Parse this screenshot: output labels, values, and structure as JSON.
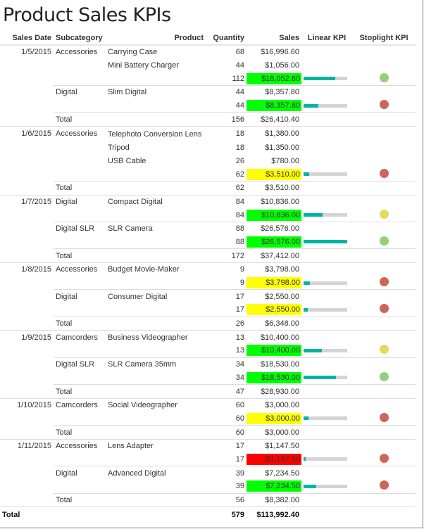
{
  "title": "Product Sales KPIs",
  "headers": [
    "Sales Date",
    "Subcategory",
    "Product",
    "Quantity",
    "Sales",
    "Linear KPI",
    "Stoplight KPI"
  ],
  "total_label": "Total",
  "colors": {
    "kpi_green": "#00ff00",
    "kpi_yellow": "#ffff00",
    "kpi_red": "#ff0000",
    "bar_fill": "#00b4a4",
    "bar_track": "#d4d4d4",
    "light_green": "#92d07a",
    "light_yellow": "#e6d85c",
    "light_red": "#cf645c"
  },
  "dates": [
    {
      "date": "1/5/2015",
      "total_qty": "156",
      "total_sales": "$26,410.40",
      "groups": [
        {
          "subcategory": "Accessories",
          "products": [
            {
              "name": "Carrying Case",
              "qty": "68",
              "sales": "$16,996.60"
            },
            {
              "name": "Mini Battery Charger",
              "qty": "44",
              "sales": "$1,056.00"
            }
          ],
          "qty": "112",
          "sales": "$18,052.60",
          "status": "green",
          "linear": 0.73,
          "light": "green"
        },
        {
          "subcategory": "Digital",
          "products": [
            {
              "name": "Slim Digital",
              "qty": "44",
              "sales": "$8,357.80"
            }
          ],
          "qty": "44",
          "sales": "$8,357.80",
          "status": "green",
          "linear": 0.34,
          "light": "red"
        }
      ]
    },
    {
      "date": "1/6/2015",
      "total_qty": "62",
      "total_sales": "$3,510.00",
      "groups": [
        {
          "subcategory": "Accessories",
          "products": [
            {
              "name": "Telephoto Conversion Lens",
              "qty": "18",
              "sales": "$1,380.00"
            },
            {
              "name": "Tripod",
              "qty": "18",
              "sales": "$1,350.00"
            },
            {
              "name": "USB Cable",
              "qty": "26",
              "sales": "$780.00"
            }
          ],
          "qty": "62",
          "sales": "$3,510.00",
          "status": "yellow",
          "linear": 0.13,
          "light": "red"
        }
      ]
    },
    {
      "date": "1/7/2015",
      "total_qty": "172",
      "total_sales": "$37,412.00",
      "groups": [
        {
          "subcategory": "Digital",
          "products": [
            {
              "name": "Compact Digital",
              "qty": "84",
              "sales": "$10,836.00"
            }
          ],
          "qty": "84",
          "sales": "$10,836.00",
          "status": "green",
          "linear": 0.44,
          "light": "yellow"
        },
        {
          "subcategory": "Digital SLR",
          "products": [
            {
              "name": "SLR Camera",
              "qty": "88",
              "sales": "$26,576.00"
            }
          ],
          "qty": "88",
          "sales": "$26,576.00",
          "status": "green",
          "linear": 1.0,
          "light": "green"
        }
      ]
    },
    {
      "date": "1/8/2015",
      "total_qty": "26",
      "total_sales": "$6,348.00",
      "groups": [
        {
          "subcategory": "Accessories",
          "products": [
            {
              "name": "Budget Movie-Maker",
              "qty": "9",
              "sales": "$3,798.00"
            }
          ],
          "qty": "9",
          "sales": "$3,798.00",
          "status": "yellow",
          "linear": 0.14,
          "light": "red"
        },
        {
          "subcategory": "Digital",
          "products": [
            {
              "name": "Consumer Digital",
              "qty": "17",
              "sales": "$2,550.00"
            }
          ],
          "qty": "17",
          "sales": "$2,550.00",
          "status": "yellow",
          "linear": 0.1,
          "light": "red"
        }
      ]
    },
    {
      "date": "1/9/2015",
      "total_qty": "47",
      "total_sales": "$28,930.00",
      "groups": [
        {
          "subcategory": "Camcorders",
          "products": [
            {
              "name": "Business Videographer",
              "qty": "13",
              "sales": "$10,400.00"
            }
          ],
          "qty": "13",
          "sales": "$10,400.00",
          "status": "green",
          "linear": 0.42,
          "light": "yellow"
        },
        {
          "subcategory": "Digital SLR",
          "products": [
            {
              "name": "SLR Camera 35mm",
              "qty": "34",
              "sales": "$18,530.00"
            }
          ],
          "qty": "34",
          "sales": "$18,530.00",
          "status": "green",
          "linear": 0.74,
          "light": "green"
        }
      ]
    },
    {
      "date": "1/10/2015",
      "total_qty": "60",
      "total_sales": "$3,000.00",
      "groups": [
        {
          "subcategory": "Camcorders",
          "products": [
            {
              "name": "Social Videographer",
              "qty": "60",
              "sales": "$3,000.00"
            }
          ],
          "qty": "60",
          "sales": "$3,000.00",
          "status": "yellow",
          "linear": 0.12,
          "light": "red"
        }
      ]
    },
    {
      "date": "1/11/2015",
      "total_qty": "56",
      "total_sales": "$8,382.00",
      "groups": [
        {
          "subcategory": "Accessories",
          "products": [
            {
              "name": "Lens Adapter",
              "qty": "17",
              "sales": "$1,147.50"
            }
          ],
          "qty": "17",
          "sales": "$1,147.50",
          "status": "red",
          "linear": 0.05,
          "light": "red"
        },
        {
          "subcategory": "Digital",
          "products": [
            {
              "name": "Advanced Digital",
              "qty": "39",
              "sales": "$7,234.50"
            }
          ],
          "qty": "39",
          "sales": "$7,234.50",
          "status": "green",
          "linear": 0.29,
          "light": "red"
        }
      ]
    }
  ],
  "grand_total": {
    "label": "Total",
    "qty": "579",
    "sales": "$113,992.40"
  }
}
